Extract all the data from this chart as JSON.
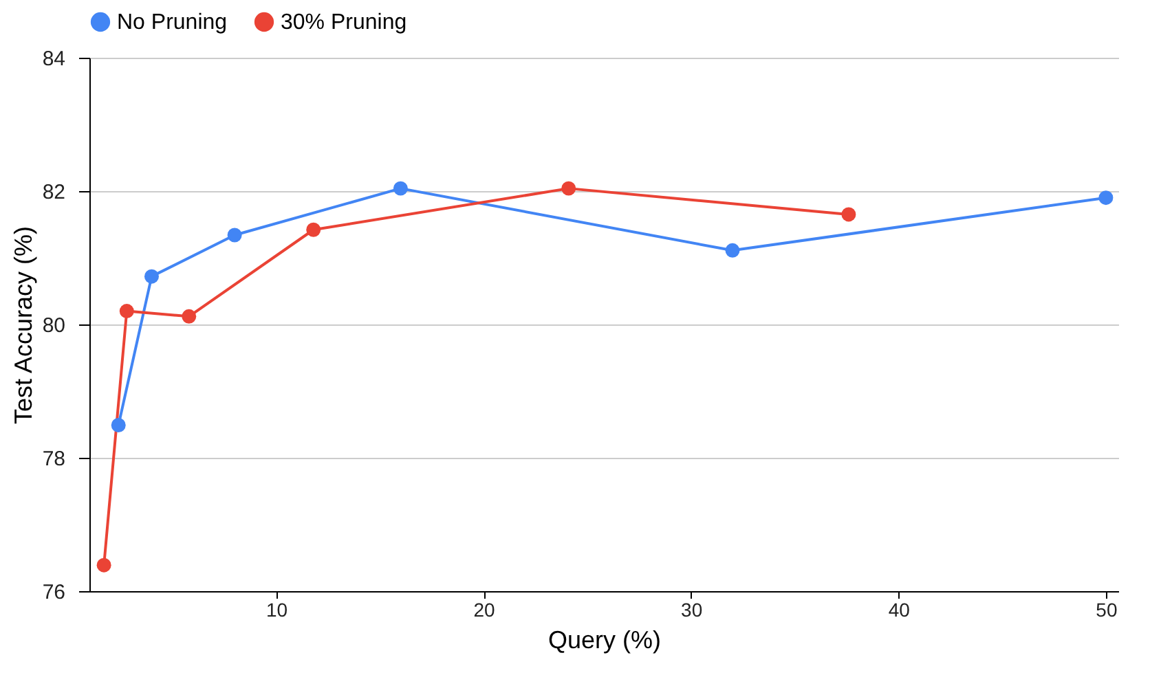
{
  "chart_data": {
    "type": "line",
    "xlabel": "Query (%)",
    "ylabel": "Test Accuracy (%)",
    "xlim": [
      1,
      50.6
    ],
    "xticks": [
      10,
      20,
      30,
      40,
      50
    ],
    "ylim": [
      76,
      84
    ],
    "yticks": [
      76,
      78,
      80,
      82,
      84
    ],
    "grid": "y",
    "legend": "top",
    "marker": "circle",
    "line_style": "solid",
    "series": [
      {
        "name": "No Pruning",
        "color": "#4285f4",
        "x": [
          2.4,
          4,
          8,
          16,
          32,
          50
        ],
        "values": [
          78.49,
          80.72,
          81.34,
          82.04,
          81.11,
          81.9
        ]
      },
      {
        "name": "30% Pruning",
        "color": "#ea4335",
        "x": [
          1.7,
          2.8,
          5.8,
          11.8,
          24.1,
          37.6
        ],
        "values": [
          76.39,
          80.2,
          80.12,
          81.42,
          82.04,
          81.65
        ]
      }
    ]
  }
}
